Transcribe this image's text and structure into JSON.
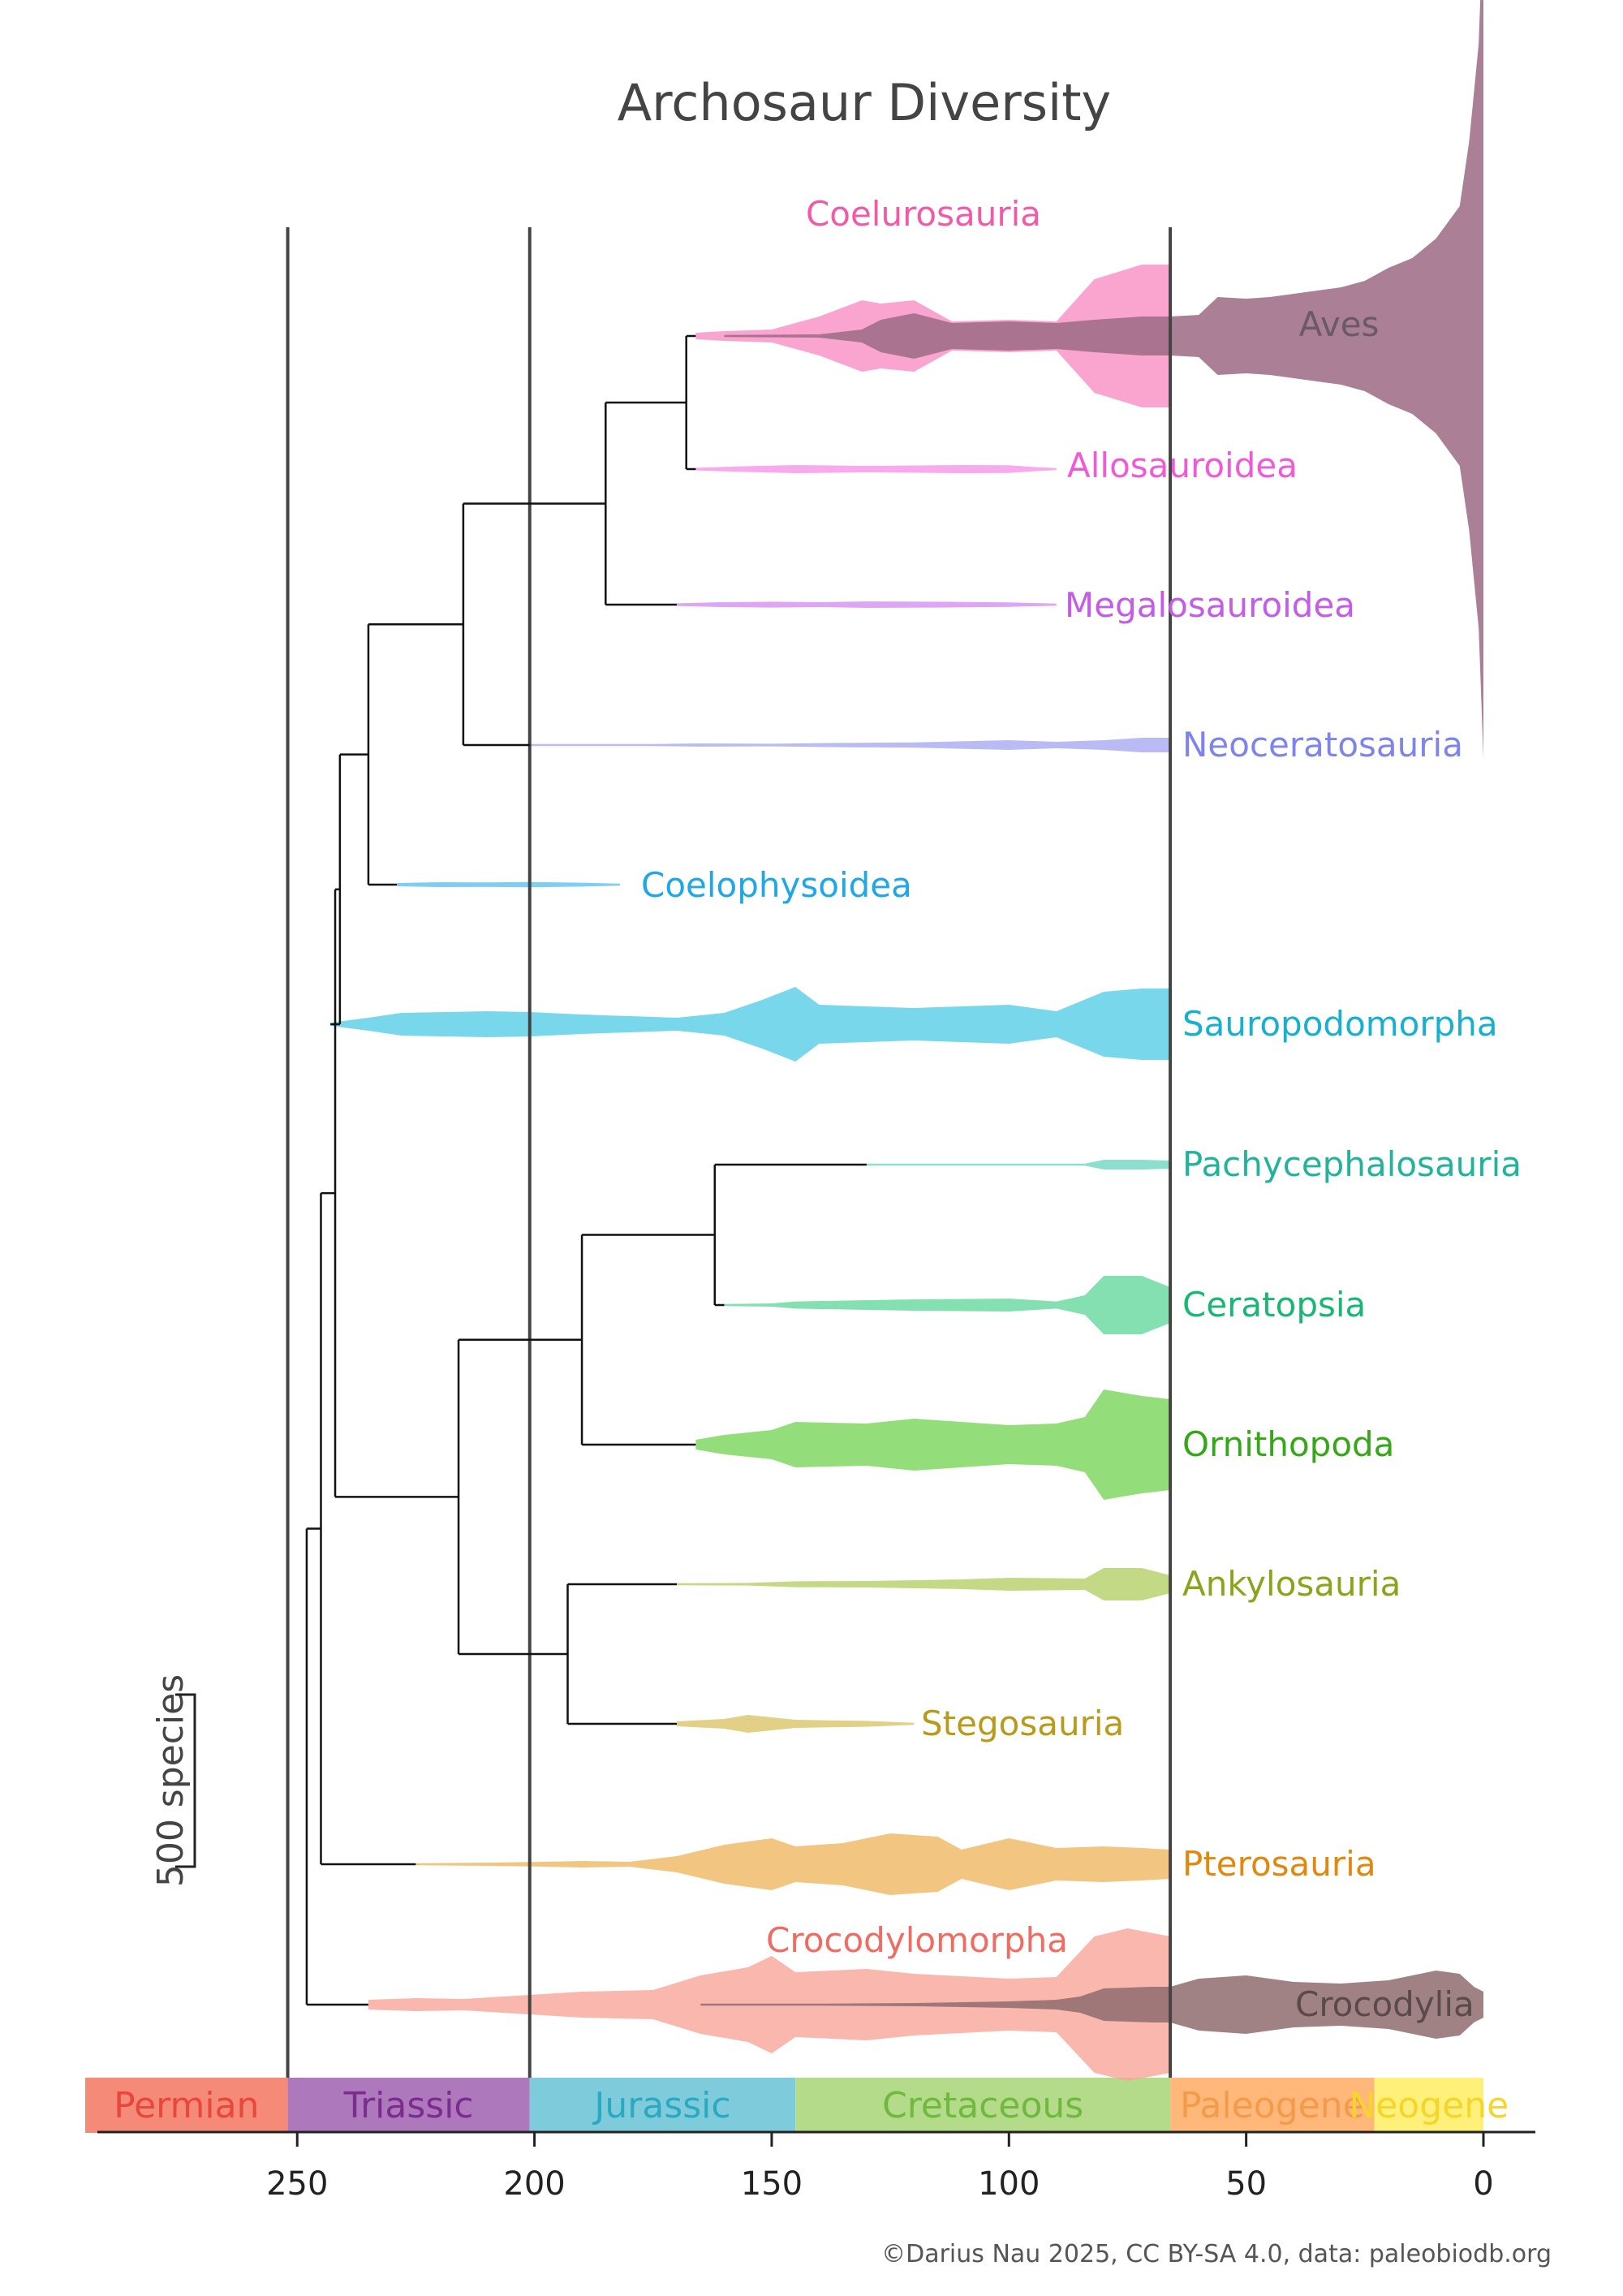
{
  "chart_data": {
    "type": "area",
    "title": "Archosaur Diversity",
    "xlabel": "",
    "ylabel": "",
    "xlim": [
      296,
      -10
    ],
    "x_ticks": [
      250,
      200,
      150,
      100,
      50,
      0
    ],
    "scale_bar": {
      "label": "500 species",
      "species": 500
    },
    "credit": "©Darius Nau 2025, CC BY-SA 4.0, data: paleobiodb.org",
    "boundaries_ma": [
      252,
      201,
      66
    ],
    "periods": [
      {
        "name": "Permian",
        "start": 296,
        "end": 252,
        "color": "#f58a78",
        "text": "#e8473a"
      },
      {
        "name": "Triassic",
        "start": 252,
        "end": 201,
        "color": "#ad78bc",
        "text": "#7a2d8c"
      },
      {
        "name": "Jurassic",
        "start": 201,
        "end": 145,
        "color": "#7ecbdb",
        "text": "#2ba9c1"
      },
      {
        "name": "Cretaceous",
        "start": 145,
        "end": 66,
        "color": "#b3db8a",
        "text": "#70b83f"
      },
      {
        "name": "Paleogene",
        "start": 66,
        "end": 23,
        "color": "#ffb77a",
        "text": "#f49b4a"
      },
      {
        "name": "Neogene",
        "start": 23,
        "end": 0,
        "color": "#fff07a",
        "text": "#f6d52a"
      }
    ],
    "series": [
      {
        "name": "Coelurosauria",
        "lane": 0,
        "color": "#f78fc4",
        "x": [
          166,
          160,
          150,
          140,
          131,
          127,
          120,
          112,
          100,
          90,
          82,
          72,
          66
        ],
        "values": [
          20,
          30,
          40,
          120,
          220,
          200,
          220,
          90,
          100,
          90,
          350,
          440,
          440
        ]
      },
      {
        "name": "Aves",
        "lane": 0,
        "color": "#9c6a84",
        "x": [
          160,
          140,
          131,
          127,
          120,
          112,
          100,
          90,
          82,
          72,
          66,
          60,
          56,
          50,
          45,
          40,
          35,
          30,
          25,
          20,
          15,
          10,
          5,
          3,
          1,
          0
        ],
        "values": [
          4,
          10,
          40,
          100,
          140,
          80,
          90,
          80,
          100,
          120,
          120,
          130,
          240,
          230,
          240,
          260,
          280,
          300,
          340,
          420,
          480,
          600,
          800,
          1200,
          1800,
          2600
        ]
      },
      {
        "name": "Allosauroidea",
        "lane": 1,
        "color": "#f595e8",
        "x": [
          166,
          155,
          145,
          130,
          110,
          100,
          95,
          90
        ],
        "values": [
          8,
          18,
          25,
          20,
          25,
          24,
          14,
          6
        ]
      },
      {
        "name": "Megalosauroidea",
        "lane": 2,
        "color": "#d48ff0",
        "x": [
          170,
          160,
          150,
          140,
          130,
          115,
          100,
          90
        ],
        "values": [
          8,
          15,
          18,
          15,
          20,
          18,
          14,
          6
        ]
      },
      {
        "name": "Neoceratosauria",
        "lane": 3,
        "color": "#a9aaf2",
        "x": [
          201,
          175,
          165,
          150,
          140,
          120,
          100,
          90,
          80,
          72,
          66
        ],
        "values": [
          2,
          4,
          10,
          8,
          12,
          16,
          30,
          20,
          30,
          45,
          45
        ]
      },
      {
        "name": "Coelophysoidea",
        "lane": 4,
        "color": "#5cc0f2",
        "x": [
          229,
          220,
          210,
          201,
          190,
          182
        ],
        "values": [
          10,
          15,
          14,
          16,
          12,
          3
        ]
      },
      {
        "name": "Sauropodomorpha",
        "lane": 5,
        "color": "#58cde6",
        "x": [
          243,
          235,
          228,
          210,
          201,
          190,
          170,
          160,
          152,
          145,
          140,
          120,
          100,
          90,
          80,
          72,
          66
        ],
        "values": [
          10,
          40,
          70,
          80,
          75,
          60,
          40,
          70,
          150,
          230,
          120,
          100,
          120,
          80,
          200,
          220,
          220
        ]
      },
      {
        "name": "Pachycephalosauria",
        "lane": 6,
        "color": "#6fd6c0",
        "x": [
          130,
          110,
          100,
          84,
          80,
          72,
          66
        ],
        "values": [
          1,
          2,
          3,
          6,
          30,
          30,
          25
        ]
      },
      {
        "name": "Ceratopsia",
        "lane": 7,
        "color": "#66d89e",
        "x": [
          160,
          150,
          145,
          130,
          120,
          100,
          90,
          84,
          80,
          72,
          66
        ],
        "values": [
          4,
          10,
          22,
          30,
          35,
          40,
          22,
          60,
          180,
          180,
          110
        ]
      },
      {
        "name": "Ornithopoda",
        "lane": 8,
        "color": "#79d45a",
        "x": [
          166,
          160,
          150,
          145,
          130,
          120,
          100,
          90,
          84,
          80,
          72,
          66
        ],
        "values": [
          30,
          60,
          90,
          140,
          130,
          160,
          120,
          130,
          170,
          340,
          300,
          280
        ]
      },
      {
        "name": "Ankylosauria",
        "lane": 9,
        "color": "#b4cf66",
        "x": [
          170,
          155,
          145,
          130,
          110,
          100,
          84,
          80,
          72,
          66
        ],
        "values": [
          2,
          8,
          18,
          20,
          30,
          40,
          35,
          100,
          100,
          55
        ]
      },
      {
        "name": "Stegosauria",
        "lane": 10,
        "color": "#d9c466",
        "x": [
          170,
          160,
          155,
          150,
          145,
          130,
          120
        ],
        "values": [
          15,
          30,
          55,
          40,
          25,
          18,
          4
        ]
      },
      {
        "name": "Pterosauria",
        "lane": 11,
        "color": "#efb860",
        "x": [
          225,
          210,
          200,
          190,
          180,
          170,
          160,
          150,
          145,
          135,
          125,
          115,
          110,
          100,
          90,
          80,
          72,
          66
        ],
        "values": [
          3,
          10,
          14,
          20,
          15,
          50,
          120,
          160,
          110,
          130,
          190,
          170,
          90,
          160,
          100,
          110,
          100,
          90
        ]
      },
      {
        "name": "Crocodylomorpha",
        "lane": 12,
        "color": "#f7a59a",
        "x": [
          235,
          225,
          215,
          201,
          190,
          175,
          165,
          155,
          150,
          145,
          130,
          120,
          100,
          90,
          82,
          75,
          66
        ],
        "values": [
          30,
          40,
          35,
          60,
          80,
          90,
          180,
          230,
          300,
          200,
          220,
          190,
          160,
          170,
          420,
          470,
          420
        ]
      },
      {
        "name": "Crocodylia",
        "lane": 12,
        "color": "#906c6e",
        "x": [
          165,
          140,
          120,
          100,
          90,
          85,
          80,
          70,
          66,
          60,
          50,
          40,
          30,
          20,
          10,
          5,
          2,
          0
        ],
        "values": [
          2,
          5,
          10,
          20,
          30,
          50,
          100,
          110,
          110,
          160,
          180,
          140,
          130,
          150,
          210,
          190,
          110,
          80
        ]
      }
    ],
    "tree": {
      "root": {
        "t": 248,
        "children": [
          {
            "t": 245,
            "children": [
              {
                "t": 242,
                "children": [
                  {
                    "t": 241,
                    "children": [
                      {
                        "t": 235,
                        "children": [
                          {
                            "t": 215,
                            "children": [
                              {
                                "t": 185,
                                "children": [
                                  {
                                    "t": 168,
                                    "children": [
                                      {
                                        "clade": "Coelurosauria"
                                      },
                                      {
                                        "clade": "Allosauroidea"
                                      }
                                    ]
                                  },
                                  {
                                    "clade": "Megalosauroidea"
                                  }
                                ]
                              },
                              {
                                "clade": "Neoceratosauria"
                              }
                            ]
                          },
                          {
                            "clade": "Coelophysoidea"
                          }
                        ]
                      },
                      {
                        "clade": "Sauropodomorpha"
                      }
                    ]
                  },
                  {
                    "t": 216,
                    "children": [
                      {
                        "t": 190,
                        "children": [
                          {
                            "t": 162,
                            "children": [
                              {
                                "clade": "Pachycephalosauria"
                              },
                              {
                                "clade": "Ceratopsia"
                              }
                            ]
                          },
                          {
                            "clade": "Ornithopoda"
                          }
                        ]
                      },
                      {
                        "t": 193,
                        "children": [
                          {
                            "clade": "Ankylosauria"
                          },
                          {
                            "clade": "Stegosauria"
                          }
                        ]
                      }
                    ]
                  }
                ]
              },
              {
                "clade": "Pterosauria"
              }
            ]
          },
          {
            "clade": "Crocodylomorpha"
          }
        ]
      }
    },
    "labels": [
      {
        "text": "Coelurosauria",
        "color": "#f25aa8"
      },
      {
        "text": "Aves",
        "color": "#6a5a66"
      },
      {
        "text": "Allosauroidea",
        "color": "#f05ad6"
      },
      {
        "text": "Megalosauroidea",
        "color": "#c45ce8"
      },
      {
        "text": "Neoceratosauria",
        "color": "#7f84ec"
      },
      {
        "text": "Coelophysoidea",
        "color": "#1fa7e6"
      },
      {
        "text": "Sauropodomorpha",
        "color": "#18b0cf"
      },
      {
        "text": "Pachycephalosauria",
        "color": "#22b49a"
      },
      {
        "text": "Ceratopsia",
        "color": "#18b873"
      },
      {
        "text": "Ornithopoda",
        "color": "#36a818"
      },
      {
        "text": "Ankylosauria",
        "color": "#8ca41c"
      },
      {
        "text": "Stegosauria",
        "color": "#b89b1a"
      },
      {
        "text": "Pterosauria",
        "color": "#e0890e"
      },
      {
        "text": "Crocodylomorpha",
        "color": "#ef6c62"
      },
      {
        "text": "Crocodylia",
        "color": "#5a4a4c"
      }
    ]
  }
}
